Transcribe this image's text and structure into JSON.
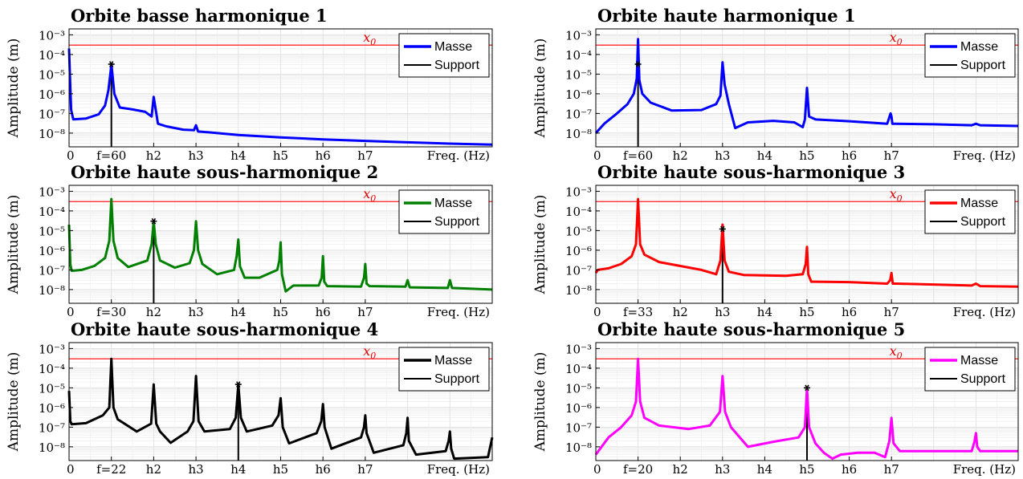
{
  "chart_data": [
    {
      "type": "line",
      "title": "Orbite basse harmonique 1",
      "ylabel": "Amplitude (m)",
      "xlabel": "Freq. (Hz)",
      "y_scale": "log",
      "ylim": [
        2e-09,
        0.002
      ],
      "y_tick_labels": [
        "10-8",
        "10-7",
        "10-6",
        "10-5",
        "10-4",
        "10-3"
      ],
      "xlim": [
        0,
        10
      ],
      "x_tick_labels": [
        {
          "x": 0,
          "label": "0"
        },
        {
          "x": 1,
          "label": "f=60"
        },
        {
          "x": 2,
          "label": "h2"
        },
        {
          "x": 3,
          "label": "h3"
        },
        {
          "x": 4,
          "label": "h4"
        },
        {
          "x": 5,
          "label": "h5"
        },
        {
          "x": 6,
          "label": "h6"
        },
        {
          "x": 7,
          "label": "h7"
        }
      ],
      "reference_line": {
        "label": "x0",
        "value": 0.0003,
        "color": "#ff0000"
      },
      "grid": true,
      "legend_position": "top-right",
      "series": [
        {
          "name": "Masse",
          "color": "#0000ff",
          "x": [
            0,
            0.03,
            0.05,
            0.1,
            0.4,
            0.7,
            0.85,
            0.93,
            0.98,
            1.0,
            1.02,
            1.07,
            1.2,
            1.5,
            1.8,
            1.95,
            2.0,
            2.05,
            2.1,
            2.3,
            2.7,
            2.95,
            3.0,
            3.05,
            3.3,
            4.0,
            5.0,
            6.0,
            7.0,
            8.0,
            9.0,
            10.0
          ],
          "y": [
            0.0002,
            2e-06,
            1.5e-07,
            5e-08,
            5.5e-08,
            9e-08,
            2.5e-07,
            1.5e-06,
            1.2e-05,
            3.2e-05,
            1.2e-05,
            1e-06,
            2e-07,
            1.6e-07,
            1.2e-07,
            7e-08,
            7e-07,
            1.5e-07,
            3e-08,
            2.2e-08,
            1.5e-08,
            1.4e-08,
            2.5e-08,
            1.2e-08,
            1.1e-08,
            8e-09,
            6e-09,
            4.8e-09,
            4e-09,
            3.4e-09,
            2.9e-09,
            2.6e-09
          ]
        }
      ],
      "excitation": {
        "name": "Support",
        "color": "#000000",
        "x": 1.0,
        "y": 3.2e-05
      }
    },
    {
      "type": "line",
      "title": "Orbite haute harmonique 1",
      "ylabel": "Amplitude (m)",
      "xlabel": "Freq. (Hz)",
      "y_scale": "log",
      "ylim": [
        2e-09,
        0.002
      ],
      "y_tick_labels": [
        "10-8",
        "10-7",
        "10-6",
        "10-5",
        "10-4",
        "10-3"
      ],
      "xlim": [
        0,
        10
      ],
      "x_tick_labels": [
        {
          "x": 0,
          "label": "0"
        },
        {
          "x": 1,
          "label": "f=60"
        },
        {
          "x": 2,
          "label": "h2"
        },
        {
          "x": 3,
          "label": "h3"
        },
        {
          "x": 4,
          "label": "h4"
        },
        {
          "x": 5,
          "label": "h5"
        },
        {
          "x": 6,
          "label": "h6"
        },
        {
          "x": 7,
          "label": "h7"
        }
      ],
      "reference_line": {
        "label": "x0",
        "value": 0.0003,
        "color": "#ff0000"
      },
      "grid": true,
      "legend_position": "top-right",
      "series": [
        {
          "name": "Masse",
          "color": "#0000ff",
          "x": [
            0,
            0.2,
            0.5,
            0.75,
            0.9,
            0.97,
            1.0,
            1.03,
            1.1,
            1.3,
            1.8,
            2.5,
            2.85,
            2.95,
            3.0,
            3.05,
            3.15,
            3.3,
            3.6,
            4.2,
            4.7,
            4.9,
            4.95,
            5.0,
            5.05,
            5.2,
            6.0,
            6.9,
            6.98,
            7.0,
            7.02,
            7.1,
            8.0,
            8.9,
            9.0,
            9.1,
            10.0
          ],
          "y": [
            1e-08,
            3e-08,
            1e-07,
            3e-07,
            1e-06,
            6e-06,
            0.0006,
            5e-06,
            1e-06,
            3.5e-07,
            1.4e-07,
            1.5e-07,
            3e-07,
            8e-07,
            4e-05,
            3e-06,
            3e-07,
            1.8e-08,
            3.5e-08,
            4.2e-08,
            3.5e-08,
            2e-08,
            5e-08,
            2e-06,
            7e-08,
            5e-08,
            4e-08,
            3e-08,
            1e-07,
            7e-08,
            3e-08,
            3e-08,
            2.8e-08,
            2.5e-08,
            3e-08,
            2.5e-08,
            2.3e-08
          ]
        }
      ],
      "excitation": {
        "name": "Support",
        "color": "#000000",
        "x": 1.0,
        "y": 3.2e-05
      }
    },
    {
      "type": "line",
      "title": "Orbite haute sous-harmonique 2",
      "ylabel": "Amplitude (m)",
      "xlabel": "Freq. (Hz)",
      "y_scale": "log",
      "ylim": [
        2e-09,
        0.002
      ],
      "y_tick_labels": [
        "10-8",
        "10-7",
        "10-6",
        "10-5",
        "10-4",
        "10-3"
      ],
      "xlim": [
        0,
        10
      ],
      "x_tick_labels": [
        {
          "x": 0,
          "label": "0"
        },
        {
          "x": 1,
          "label": "f=30"
        },
        {
          "x": 2,
          "label": "h2"
        },
        {
          "x": 3,
          "label": "h3"
        },
        {
          "x": 4,
          "label": "h4"
        },
        {
          "x": 5,
          "label": "h5"
        },
        {
          "x": 6,
          "label": "h6"
        },
        {
          "x": 7,
          "label": "h7"
        }
      ],
      "reference_line": {
        "label": "x0",
        "value": 0.0003,
        "color": "#ff0000"
      },
      "grid": true,
      "legend_position": "top-right",
      "series": [
        {
          "name": "Masse",
          "color": "#008000",
          "x": [
            0,
            0.03,
            0.06,
            0.3,
            0.6,
            0.85,
            0.95,
            1.0,
            1.05,
            1.15,
            1.4,
            1.85,
            1.95,
            2.0,
            2.05,
            2.15,
            2.5,
            2.85,
            2.95,
            3.0,
            3.05,
            3.15,
            3.5,
            3.9,
            3.96,
            4.0,
            4.04,
            4.15,
            4.5,
            4.92,
            4.97,
            5.0,
            5.03,
            5.12,
            5.3,
            5.9,
            5.97,
            6.0,
            6.03,
            6.1,
            6.9,
            6.97,
            7.0,
            7.03,
            7.1,
            7.95,
            8.0,
            8.05,
            8.95,
            9.0,
            9.05,
            10.0
          ],
          "y": [
            2e-05,
            2e-07,
            9e-08,
            1e-07,
            1.6e-07,
            4e-07,
            3e-06,
            0.0004,
            3e-06,
            4e-07,
            1.4e-07,
            3e-07,
            2e-06,
            3e-05,
            2e-06,
            3e-07,
            1.3e-07,
            2.2e-07,
            1e-06,
            3e-05,
            1e-06,
            2e-07,
            6e-08,
            1e-07,
            5e-07,
            3.5e-06,
            1.5e-07,
            4e-08,
            4e-08,
            1e-07,
            3e-07,
            2.5e-06,
            6e-08,
            8e-09,
            1.6e-08,
            1.6e-08,
            4e-08,
            5e-07,
            2.5e-08,
            1.5e-08,
            1.4e-08,
            4e-08,
            2e-07,
            2e-08,
            1.5e-08,
            1.4e-08,
            3e-08,
            1.3e-08,
            1.2e-08,
            3e-08,
            1.2e-08,
            1e-08
          ]
        }
      ],
      "excitation": {
        "name": "Support",
        "color": "#000000",
        "x": 2.0,
        "y": 3e-05
      }
    },
    {
      "type": "line",
      "title": "Orbite haute sous-harmonique 3",
      "ylabel": "Amplitude (m)",
      "xlabel": "Freq. (Hz)",
      "y_scale": "log",
      "ylim": [
        2e-09,
        0.002
      ],
      "y_tick_labels": [
        "10-8",
        "10-7",
        "10-6",
        "10-5",
        "10-4",
        "10-3"
      ],
      "xlim": [
        0,
        10
      ],
      "x_tick_labels": [
        {
          "x": 0,
          "label": "0"
        },
        {
          "x": 1,
          "label": "f=33"
        },
        {
          "x": 2,
          "label": "h2"
        },
        {
          "x": 3,
          "label": "h3"
        },
        {
          "x": 4,
          "label": "h4"
        },
        {
          "x": 5,
          "label": "h5"
        },
        {
          "x": 6,
          "label": "h6"
        },
        {
          "x": 7,
          "label": "h7"
        }
      ],
      "reference_line": {
        "label": "x0",
        "value": 0.0003,
        "color": "#ff0000"
      },
      "grid": true,
      "legend_position": "top-right",
      "series": [
        {
          "name": "Masse",
          "color": "#ff0000",
          "x": [
            0,
            0.05,
            0.3,
            0.6,
            0.85,
            0.95,
            1.0,
            1.05,
            1.15,
            1.5,
            2.5,
            2.85,
            2.95,
            3.0,
            3.05,
            3.15,
            3.5,
            4.5,
            4.9,
            4.97,
            5.0,
            5.03,
            5.1,
            6.0,
            6.9,
            6.97,
            7.0,
            7.03,
            7.1,
            8.0,
            8.9,
            9.0,
            9.1,
            10.0
          ],
          "y": [
            7e-08,
            1e-07,
            1.2e-07,
            2e-07,
            5e-07,
            2e-06,
            0.0004,
            2e-06,
            6e-07,
            2.5e-07,
            1e-07,
            6e-08,
            3e-07,
            2e-05,
            3e-07,
            8e-08,
            5.5e-08,
            5e-08,
            6e-08,
            2e-07,
            1.5e-06,
            6e-08,
            2.5e-08,
            2.4e-08,
            2e-08,
            3e-08,
            7e-08,
            2e-08,
            2e-08,
            1.8e-08,
            1.6e-08,
            2e-08,
            1.5e-08,
            1.4e-08
          ]
        }
      ],
      "excitation": {
        "name": "Support",
        "color": "#000000",
        "x": 3.0,
        "y": 1.2e-05
      }
    },
    {
      "type": "line",
      "title": "Orbite haute sous-harmonique 4",
      "ylabel": "Amplitude (m)",
      "xlabel": "Freq. (Hz)",
      "y_scale": "log",
      "ylim": [
        2e-09,
        0.002
      ],
      "y_tick_labels": [
        "10-8",
        "10-7",
        "10-6",
        "10-5",
        "10-4",
        "10-3"
      ],
      "xlim": [
        0,
        10
      ],
      "x_tick_labels": [
        {
          "x": 0,
          "label": "0"
        },
        {
          "x": 1,
          "label": "f=22"
        },
        {
          "x": 2,
          "label": "h2"
        },
        {
          "x": 3,
          "label": "h3"
        },
        {
          "x": 4,
          "label": "h4"
        },
        {
          "x": 5,
          "label": "h5"
        },
        {
          "x": 6,
          "label": "h6"
        },
        {
          "x": 7,
          "label": "h7"
        }
      ],
      "reference_line": {
        "label": "x0",
        "value": 0.0003,
        "color": "#ff0000"
      },
      "grid": true,
      "legend_position": "top-right",
      "series": [
        {
          "name": "Masse",
          "color": "#000000",
          "x": [
            0,
            0.03,
            0.06,
            0.4,
            0.8,
            0.95,
            1.0,
            1.05,
            1.15,
            1.6,
            1.94,
            2.0,
            2.06,
            2.15,
            2.4,
            2.8,
            2.94,
            3.0,
            3.06,
            3.2,
            3.8,
            3.94,
            4.0,
            4.06,
            4.2,
            4.8,
            4.95,
            5.0,
            5.05,
            5.2,
            5.85,
            5.96,
            6.0,
            6.04,
            6.2,
            6.9,
            6.97,
            7.0,
            7.03,
            7.2,
            7.9,
            7.97,
            8.0,
            8.03,
            8.2,
            8.9,
            8.97,
            9.0,
            9.03,
            9.1,
            9.9,
            9.97,
            10.0
          ],
          "y": [
            7e-06,
            2e-07,
            1.4e-07,
            1.6e-07,
            4e-07,
            1e-06,
            0.0003,
            1e-06,
            2.5e-07,
            6e-08,
            1.5e-07,
            1.5e-05,
            1.5e-07,
            6e-08,
            1.6e-08,
            6e-08,
            2e-07,
            4e-05,
            2e-07,
            6e-08,
            8e-08,
            3e-07,
            1.5e-05,
            3e-07,
            6e-08,
            1.2e-07,
            4e-07,
            3e-06,
            1e-07,
            1.5e-08,
            5e-08,
            2e-07,
            1.5e-06,
            1e-07,
            8e-09,
            3e-08,
            1e-07,
            4e-07,
            5e-08,
            5e-09,
            1.2e-08,
            5e-08,
            3e-07,
            2e-08,
            4e-09,
            6e-09,
            2e-08,
            6e-08,
            8e-09,
            2.5e-09,
            3e-09,
            1.5e-08,
            3e-08
          ]
        }
      ],
      "excitation": {
        "name": "Support",
        "color": "#000000",
        "x": 4.0,
        "y": 1.5e-05
      }
    },
    {
      "type": "line",
      "title": "Orbite haute sous-harmonique 5",
      "ylabel": "Amplitude (m)",
      "xlabel": "Freq. (Hz)",
      "y_scale": "log",
      "ylim": [
        2e-09,
        0.002
      ],
      "y_tick_labels": [
        "10-8",
        "10-7",
        "10-6",
        "10-5",
        "10-4",
        "10-3"
      ],
      "xlim": [
        0,
        10
      ],
      "x_tick_labels": [
        {
          "x": 0,
          "label": "0"
        },
        {
          "x": 1,
          "label": "f=20"
        },
        {
          "x": 2,
          "label": "h2"
        },
        {
          "x": 3,
          "label": "h3"
        },
        {
          "x": 4,
          "label": "h4"
        },
        {
          "x": 5,
          "label": "h5"
        },
        {
          "x": 6,
          "label": "h6"
        },
        {
          "x": 7,
          "label": "h7"
        }
      ],
      "reference_line": {
        "label": "x0",
        "value": 0.0003,
        "color": "#ff0000"
      },
      "grid": true,
      "legend_position": "top-right",
      "series": [
        {
          "name": "Masse",
          "color": "#ff00ff",
          "x": [
            0,
            0.3,
            0.6,
            0.85,
            0.95,
            1.0,
            1.05,
            1.15,
            1.5,
            2.2,
            2.7,
            2.94,
            3.0,
            3.06,
            3.2,
            3.6,
            4.2,
            4.8,
            4.95,
            5.0,
            5.05,
            5.2,
            5.4,
            5.6,
            5.8,
            6.2,
            6.6,
            6.85,
            6.95,
            7.0,
            7.05,
            7.2,
            8.0,
            8.9,
            8.97,
            9.0,
            9.03,
            9.1,
            10.0
          ],
          "y": [
            4e-09,
            3e-08,
            1e-07,
            4e-07,
            2e-06,
            0.0003,
            2e-06,
            3e-07,
            1.2e-07,
            8e-08,
            1.2e-07,
            6e-07,
            4e-05,
            6e-07,
            1e-07,
            1e-08,
            1.8e-08,
            3e-08,
            1e-07,
            1e-05,
            1e-07,
            1.5e-08,
            5e-09,
            2.5e-09,
            4e-09,
            5e-09,
            5e-09,
            3e-09,
            2e-08,
            3e-07,
            1.5e-08,
            6e-09,
            6e-09,
            6e-09,
            2e-08,
            5e-08,
            1e-08,
            6e-09,
            6e-09
          ]
        }
      ],
      "excitation": {
        "name": "Support",
        "color": "#000000",
        "x": 5.0,
        "y": 1e-05
      }
    }
  ]
}
